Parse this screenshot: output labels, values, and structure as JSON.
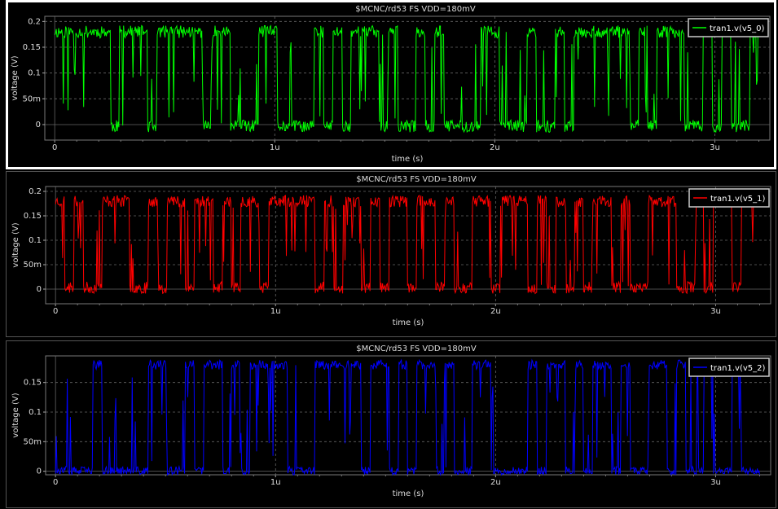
{
  "chart_data": [
    {
      "type": "line",
      "title": "$MCNC/rd53 FS VDD=180mV",
      "xlabel": "time (s)",
      "ylabel": "voltage (V)",
      "xlim": [
        -4.5e-08,
        3.25e-06
      ],
      "ylim": [
        -0.03,
        0.21
      ],
      "x_ticks": [
        0,
        1e-06,
        2e-06,
        3e-06
      ],
      "x_tick_labels": [
        "0",
        "1u",
        "2u",
        "3u"
      ],
      "y_ticks": [
        0,
        0.05,
        0.1,
        0.15,
        0.2
      ],
      "y_tick_labels": [
        "0",
        "50m",
        "0.1",
        "0.15",
        "0.2"
      ],
      "grid": true,
      "legend_position": "top-right",
      "series": [
        {
          "name": "tran1.v(v5_0)",
          "color": "#00ff00",
          "high": 0.18,
          "low": -0.003,
          "noise": 0.012,
          "seed": 11,
          "pattern": [
            1,
            1,
            1,
            1,
            1,
            1,
            0,
            1,
            1,
            1,
            0,
            1,
            1,
            1,
            1,
            1,
            0,
            1,
            1,
            0,
            0,
            0,
            1,
            1,
            0,
            0,
            0,
            0,
            1,
            0,
            1,
            0,
            1,
            1,
            1,
            0,
            1,
            0,
            0,
            1,
            0,
            1,
            0,
            0,
            0,
            0,
            1,
            1,
            0,
            0,
            0,
            1,
            0,
            0,
            1,
            0,
            1,
            1,
            1,
            1,
            1,
            1,
            0,
            1,
            0,
            1,
            1,
            1,
            0,
            0,
            1,
            0,
            1,
            0,
            0,
            1
          ]
        }
      ]
    },
    {
      "type": "line",
      "title": "$MCNC/rd53 FS VDD=180mV",
      "xlabel": "time (s)",
      "ylabel": "voltage (V)",
      "xlim": [
        -4.5e-08,
        3.25e-06
      ],
      "ylim": [
        -0.03,
        0.21
      ],
      "x_ticks": [
        0,
        1e-06,
        2e-06,
        3e-06
      ],
      "x_tick_labels": [
        "0",
        "1u",
        "2u",
        "3u"
      ],
      "y_ticks": [
        0,
        0.05,
        0.1,
        0.15,
        0.2
      ],
      "y_tick_labels": [
        "0",
        "50m",
        "0.1",
        "0.15",
        "0.2"
      ],
      "grid": true,
      "legend_position": "top-right",
      "series": [
        {
          "name": "tran1.v(v5_1)",
          "color": "#ff0000",
          "high": 0.18,
          "low": 0.003,
          "noise": 0.012,
          "seed": 23,
          "pattern": [
            1,
            0,
            1,
            0,
            0,
            1,
            1,
            1,
            0,
            0,
            1,
            0,
            1,
            1,
            0,
            1,
            1,
            0,
            1,
            0,
            1,
            1,
            0,
            1,
            1,
            1,
            1,
            1,
            0,
            1,
            0,
            1,
            1,
            0,
            1,
            0,
            1,
            1,
            0,
            1,
            1,
            0,
            1,
            0,
            0,
            1,
            1,
            0,
            1,
            1,
            1,
            0,
            1,
            0,
            1,
            0,
            1,
            0,
            1,
            1,
            0,
            1,
            0,
            0,
            1,
            1,
            1,
            0,
            0,
            1,
            0,
            1,
            1,
            0,
            1,
            1
          ]
        }
      ]
    },
    {
      "type": "line",
      "title": "$MCNC/rd53 FS VDD=180mV",
      "xlabel": "time (s)",
      "ylabel": "voltage (V)",
      "xlim": [
        -4.5e-08,
        3.25e-06
      ],
      "ylim": [
        -0.006,
        0.195
      ],
      "x_ticks": [
        0,
        1e-06,
        2e-06,
        3e-06
      ],
      "x_tick_labels": [
        "0",
        "1u",
        "2u",
        "3u"
      ],
      "y_ticks": [
        0,
        0.05,
        0.1,
        0.15
      ],
      "y_tick_labels": [
        "0",
        "50m",
        "0.1",
        "0.15"
      ],
      "grid": true,
      "legend_position": "top-right",
      "series": [
        {
          "name": "tran1.v(v5_2)",
          "color": "#0000ff",
          "high": 0.18,
          "low": 0.0,
          "noise": 0.008,
          "seed": 37,
          "pattern": [
            0,
            0,
            0,
            0,
            1,
            0,
            0,
            0,
            0,
            0,
            1,
            1,
            0,
            0,
            1,
            0,
            1,
            1,
            0,
            1,
            0,
            1,
            1,
            1,
            1,
            0,
            0,
            0,
            1,
            1,
            1,
            1,
            1,
            0,
            1,
            1,
            0,
            1,
            0,
            1,
            1,
            0,
            1,
            0,
            0,
            1,
            1,
            0,
            0,
            0,
            0,
            1,
            0,
            1,
            1,
            0,
            1,
            0,
            1,
            1,
            0,
            1,
            0,
            0,
            1,
            1,
            0,
            1,
            0,
            0,
            1,
            0,
            0,
            1,
            0,
            0
          ]
        }
      ]
    }
  ]
}
